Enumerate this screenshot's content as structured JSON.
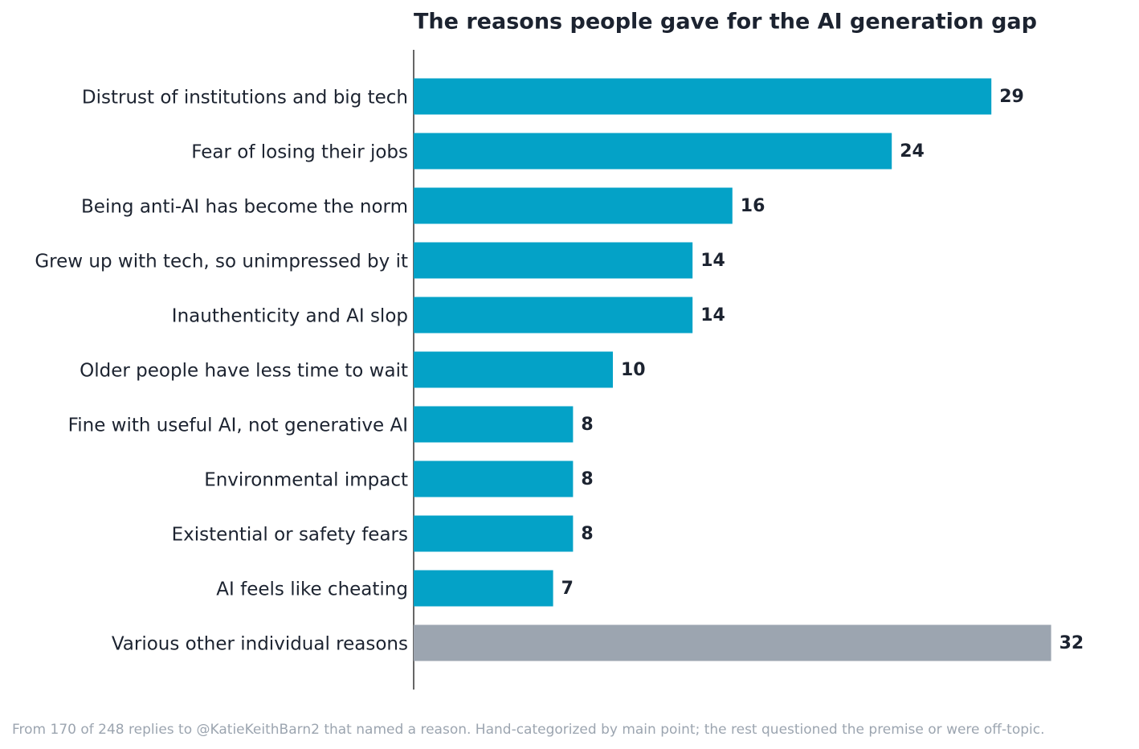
{
  "chart_data": {
    "type": "bar",
    "orientation": "horizontal",
    "title": "The reasons people gave for the AI generation gap",
    "categories": [
      "Distrust of institutions and big tech",
      "Fear of losing their jobs",
      "Being anti-AI has become the norm",
      "Grew up with tech, so unimpressed by it",
      "Inauthenticity and AI slop",
      "Older people have less time to wait",
      "Fine with useful AI, not generative AI",
      "Environmental impact",
      "Existential or safety fears",
      "AI feels like cheating",
      "Various other individual reasons"
    ],
    "values": [
      29,
      24,
      16,
      14,
      14,
      10,
      8,
      8,
      8,
      7,
      32
    ],
    "colors": [
      "#04a2c7",
      "#04a2c7",
      "#04a2c7",
      "#04a2c7",
      "#04a2c7",
      "#04a2c7",
      "#04a2c7",
      "#04a2c7",
      "#04a2c7",
      "#04a2c7",
      "#9ca5b0"
    ],
    "xlim": [
      0,
      35
    ],
    "caption": "From 170 of 248 replies to @KatieKeithBarn2 that named a reason. Hand-categorized by main point; the rest questioned the premise or were off-topic."
  }
}
